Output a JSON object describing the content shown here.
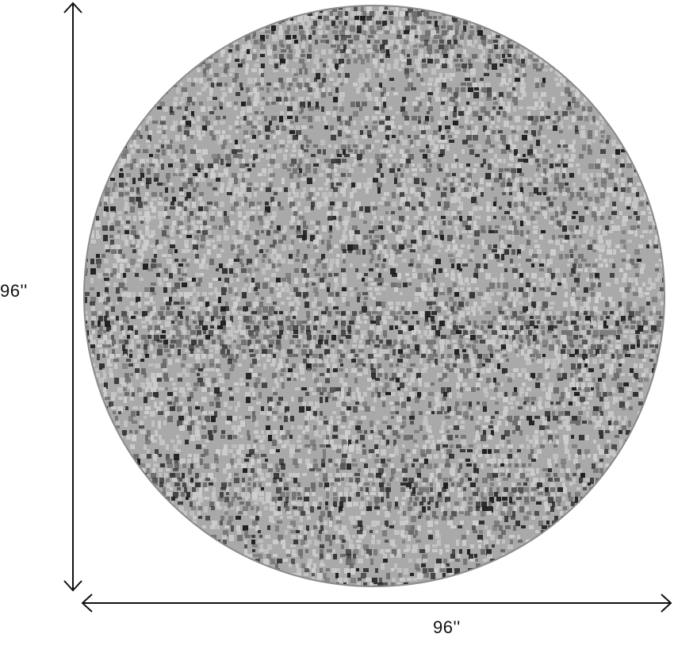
{
  "product": {
    "shape": "round rug",
    "height_label": "96''",
    "width_label": "96''",
    "colors": {
      "base": "#a9a9a9",
      "light": "#cfcfcf",
      "dark": "#1e1e1e",
      "edge": "#8a8a8a"
    }
  }
}
